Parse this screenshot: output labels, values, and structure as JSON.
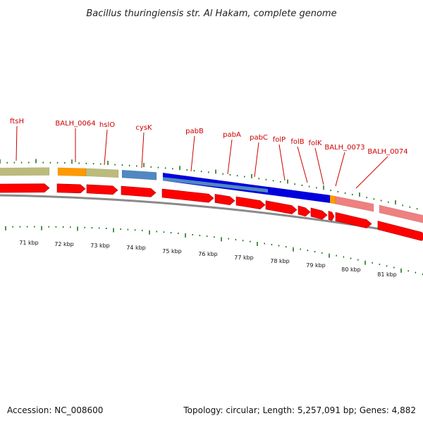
{
  "header": {
    "title": "Bacillus thuringiensis str. Al Hakam, complete genome"
  },
  "footer": {
    "accession": "Accession: NC_008600",
    "summary": "Topology: circular; Length: 5,257,091 bp; Genes: 4,882"
  },
  "colors": {
    "cds_arrow": "#ff0000",
    "cog_olive": "#bdbb7b",
    "cog_orange": "#ff9900",
    "cog_steel_blue": "#4f88c2",
    "cog_blue": "#0000dd",
    "cog_pink": "#ee8080",
    "label_red": "#cc0000",
    "tick_green": "#006600",
    "backbone_gray": "#777777"
  },
  "gene_labels": [
    "ftsH",
    "BALH_0064",
    "hslO",
    "cysK",
    "pabB",
    "pabA",
    "pabC",
    "folP",
    "folB",
    "folK",
    "BALH_0073",
    "BALH_0074"
  ],
  "kbp_ticks": [
    "71 kbp",
    "72 kbp",
    "73 kbp",
    "74 kbp",
    "75 kbp",
    "76 kbp",
    "77 kbp",
    "78 kbp",
    "79 kbp",
    "80 kbp",
    "81 kbp"
  ]
}
